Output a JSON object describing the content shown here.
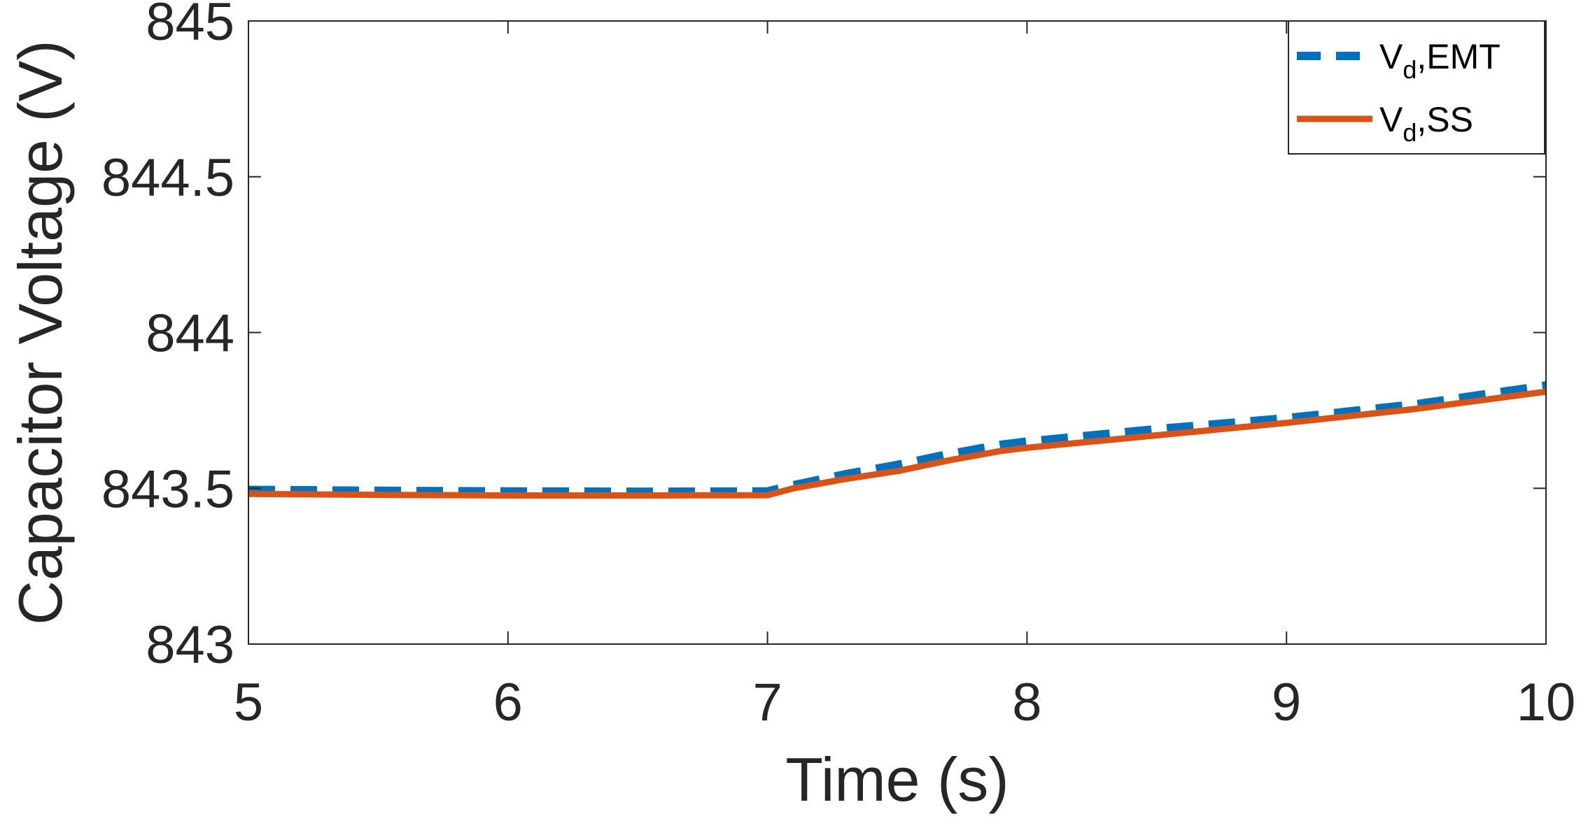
{
  "chart_data": {
    "type": "line",
    "title": "",
    "xlabel": "Time (s)",
    "ylabel": "Capacitor Voltage (V)",
    "xlim": [
      5,
      10
    ],
    "ylim": [
      843,
      845
    ],
    "xticks": [
      5,
      6,
      7,
      8,
      9,
      10
    ],
    "xtick_labels": [
      "5",
      "6",
      "7",
      "8",
      "9",
      "10"
    ],
    "yticks": [
      843,
      843.5,
      844,
      844.5,
      845
    ],
    "ytick_labels": [
      "843",
      "843.5",
      "844",
      "844.5",
      "845"
    ],
    "grid": false,
    "legend_position": "top-right",
    "series": [
      {
        "name_main": "V",
        "name_sub": "d",
        "name_suffix": ",EMT",
        "color": "#0072BD",
        "style": "dashed",
        "x": [
          5.0,
          5.5,
          6.0,
          6.5,
          7.0,
          7.1,
          7.3,
          7.5,
          7.7,
          7.9,
          8.0,
          8.5,
          9.0,
          9.5,
          10.0
        ],
        "y": [
          843.495,
          843.492,
          843.49,
          843.489,
          843.49,
          843.51,
          843.545,
          843.575,
          843.61,
          843.64,
          843.65,
          843.69,
          843.725,
          843.77,
          843.83
        ]
      },
      {
        "name_main": "V",
        "name_sub": "d",
        "name_suffix": ",SS",
        "color": "#D95319",
        "style": "solid",
        "x": [
          5.0,
          5.5,
          6.0,
          6.5,
          7.0,
          7.1,
          7.3,
          7.5,
          7.7,
          7.9,
          8.0,
          8.5,
          9.0,
          9.5,
          10.0
        ],
        "y": [
          843.482,
          843.479,
          843.477,
          843.477,
          843.478,
          843.5,
          843.53,
          843.555,
          843.59,
          843.62,
          843.63,
          843.67,
          843.71,
          843.755,
          843.81
        ]
      }
    ]
  }
}
